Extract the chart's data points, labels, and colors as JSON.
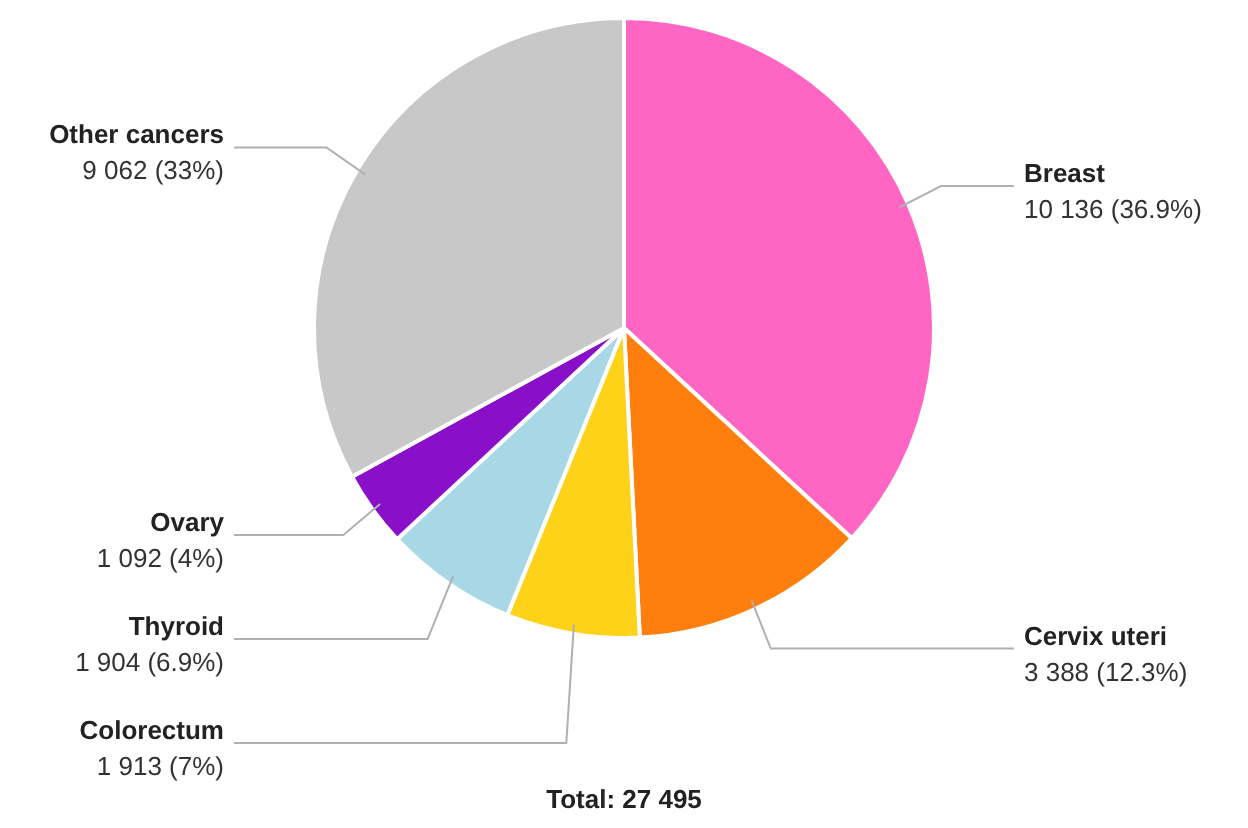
{
  "chart_data": {
    "type": "pie",
    "categories": [
      "Breast",
      "Cervix uteri",
      "Colorectum",
      "Thyroid",
      "Ovary",
      "Other cancers"
    ],
    "values": [
      10136,
      3388,
      1913,
      1904,
      1092,
      9062
    ],
    "value_labels": [
      "10 136 (36.9%)",
      "3 388 (12.3%)",
      "1 913 (7%)",
      "1 904 (6.9%)",
      "1 092 (4%)",
      "9 062 (33%)"
    ],
    "colors": [
      "#ff66c4",
      "#ff7f0e",
      "#ffd21a",
      "#a8d8e6",
      "#8a0fc8",
      "#c8c8c8"
    ],
    "annotations": [
      "Total: 27 495"
    ],
    "legend": false
  }
}
